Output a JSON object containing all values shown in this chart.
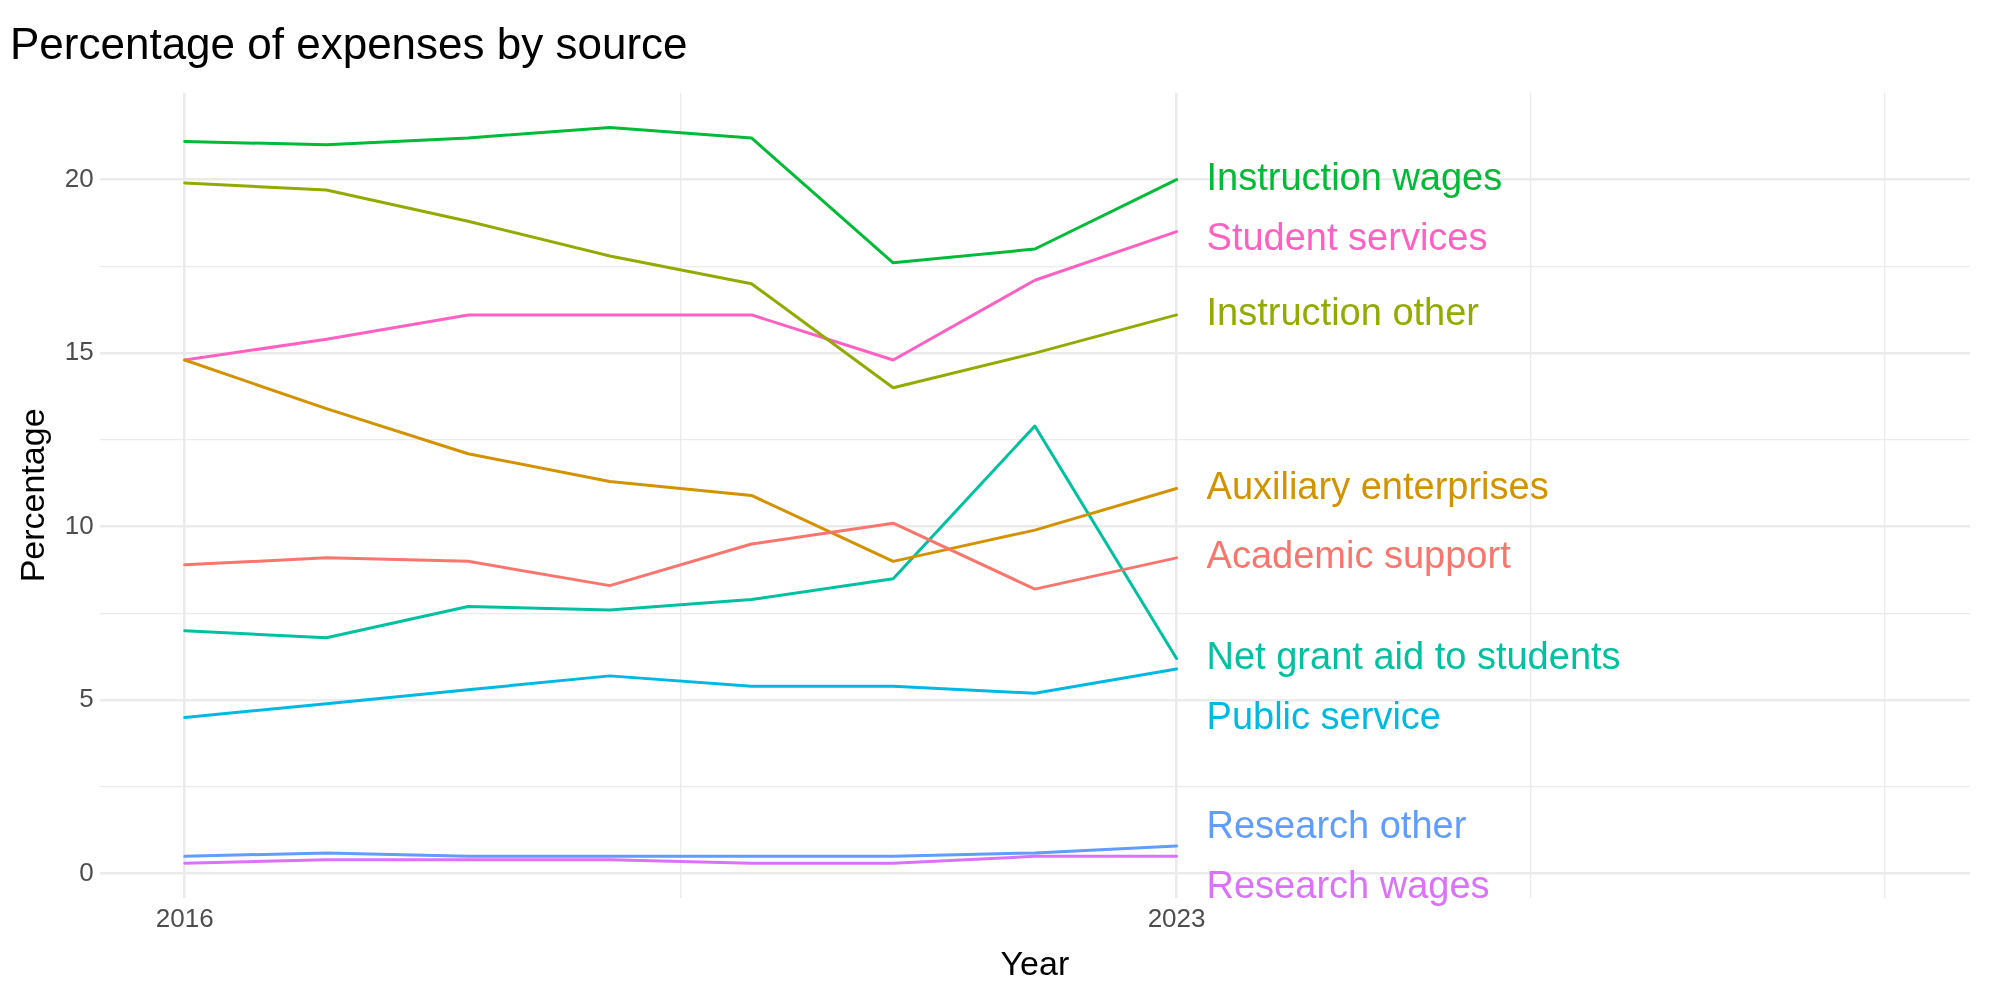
{
  "chart_data": {
    "type": "line",
    "title": "Percentage of expenses by source",
    "xlabel": "Year",
    "ylabel": "Percentage",
    "x": [
      2016,
      2017,
      2018,
      2019,
      2020,
      2021,
      2022,
      2023
    ],
    "xlim": [
      2015.4,
      2028.6
    ],
    "xticks": [
      2016,
      {
        "value": 2019.5,
        "label": null
      },
      2023,
      {
        "value": 2025.5,
        "label": null
      },
      {
        "value": 2028,
        "label": null
      }
    ],
    "ylim": [
      -0.7,
      22.5
    ],
    "yticks": [
      0,
      {
        "value": 2.5,
        "label": null
      },
      5,
      {
        "value": 7.5,
        "label": null
      },
      10,
      {
        "value": 12.5,
        "label": null
      },
      15,
      {
        "value": 17.5,
        "label": null
      },
      20
    ],
    "grid": true,
    "legend": false,
    "marker": "none",
    "line_style": "solid",
    "series": [
      {
        "name": "Academic support",
        "color": "#f8766d",
        "values": [
          8.9,
          9.1,
          9.0,
          8.3,
          9.5,
          10.1,
          8.2,
          9.1
        ]
      },
      {
        "name": "Auxiliary enterprises",
        "color": "#d39200",
        "values": [
          14.8,
          13.4,
          12.1,
          11.3,
          10.9,
          9.0,
          9.9,
          11.1
        ]
      },
      {
        "name": "Instruction other",
        "color": "#93aa00",
        "values": [
          19.9,
          19.7,
          18.8,
          17.8,
          17.0,
          14.0,
          15.0,
          16.1
        ]
      },
      {
        "name": "Instruction wages",
        "color": "#00ba38",
        "values": [
          21.1,
          21.0,
          21.2,
          21.5,
          21.2,
          17.6,
          18.0,
          20.0
        ]
      },
      {
        "name": "Net grant aid to students",
        "color": "#00c19f",
        "values": [
          7.0,
          6.8,
          7.7,
          7.6,
          7.9,
          8.5,
          12.9,
          6.2
        ]
      },
      {
        "name": "Public service",
        "color": "#00b9e3",
        "values": [
          4.5,
          4.9,
          5.3,
          5.7,
          5.4,
          5.4,
          5.2,
          5.9
        ]
      },
      {
        "name": "Research other",
        "color": "#619cff",
        "values": [
          0.5,
          0.6,
          0.5,
          0.5,
          0.5,
          0.5,
          0.6,
          0.8
        ]
      },
      {
        "name": "Research wages",
        "color": "#db72fb",
        "values": [
          0.3,
          0.4,
          0.4,
          0.4,
          0.3,
          0.3,
          0.5,
          0.5
        ]
      },
      {
        "name": "Student services",
        "color": "#ff61c3",
        "values": [
          14.8,
          15.4,
          16.1,
          16.1,
          16.1,
          14.8,
          17.1,
          18.5
        ]
      }
    ]
  }
}
